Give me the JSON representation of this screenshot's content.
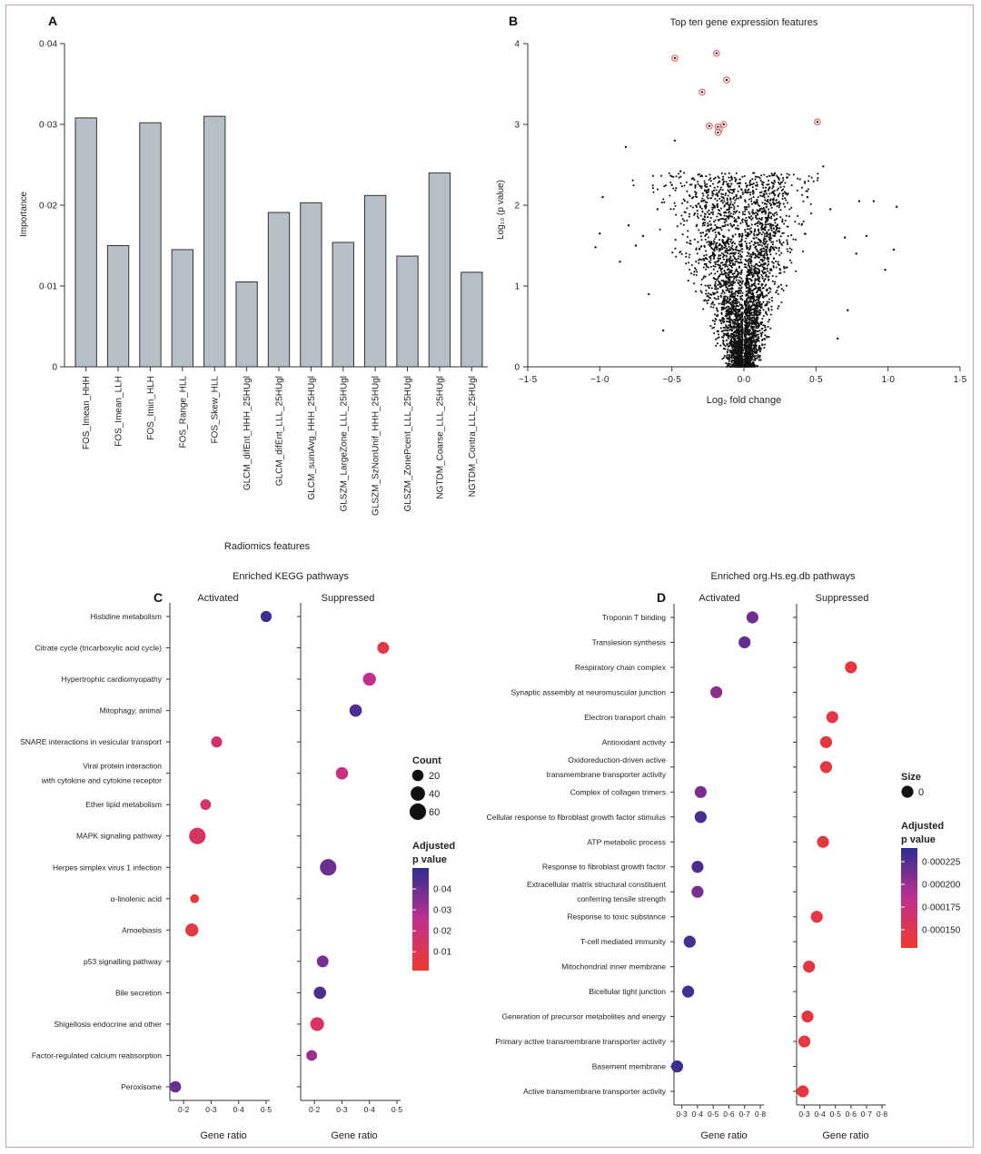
{
  "panels": {
    "A": {
      "letter": "A",
      "chart_data": {
        "type": "bar",
        "title": "",
        "xlabel": "Radiomics features",
        "ylabel": "Importance",
        "ylim": [
          0,
          0.04
        ],
        "yticks": [
          "0",
          "0·01",
          "0·02",
          "0·03",
          "0·04"
        ],
        "categories": [
          "FOS_Imean_HHH",
          "FOS_Imean_LLH",
          "FOS_Imin_HLH",
          "FOS_Range_HLL",
          "FOS_Skew_HLL",
          "GLCM_difEnt_HHH_25HUgl",
          "GLCM_difEnt_LLL_25HUgl",
          "GLCM_sumAvg_HHH_25HUgl",
          "GLSZM_LargeZone_LLL_25HUgl",
          "GLSZM_SzNonUnif_HHH_25HUgl",
          "GLSZM_ZonePcent_LLL_25HUgl",
          "NGTDM_Coarse_LLL_25HUgl",
          "NGTDM_Contra_LLL_25HUgl"
        ],
        "values": [
          0.0308,
          0.015,
          0.0302,
          0.0145,
          0.031,
          0.0105,
          0.0191,
          0.0203,
          0.0154,
          0.0212,
          0.0137,
          0.024,
          0.0117
        ],
        "bar_color": "#b6bec8"
      }
    },
    "B": {
      "letter": "B",
      "chart_data": {
        "type": "scatter",
        "title": "Top ten gene expression features",
        "xlabel": "Log₂ fold change",
        "ylabel": "Log₁₀ (p value)",
        "xlim": [
          -1.5,
          1.5
        ],
        "ylim": [
          0,
          4
        ],
        "xticks": [
          "−1·5",
          "−1·0",
          "−0·5",
          "0·0",
          "0·5",
          "1·0",
          "1·5"
        ],
        "yticks": [
          "0",
          "1",
          "2",
          "3",
          "4"
        ],
        "point_color": "#111111",
        "highlight_color": "#e06b6b",
        "highlighted": [
          {
            "x": -0.48,
            "y": 3.82
          },
          {
            "x": -0.19,
            "y": 3.88
          },
          {
            "x": -0.12,
            "y": 3.55
          },
          {
            "x": -0.29,
            "y": 3.4
          },
          {
            "x": -0.24,
            "y": 2.98
          },
          {
            "x": -0.18,
            "y": 2.97
          },
          {
            "x": -0.14,
            "y": 3.0
          },
          {
            "x": -0.17,
            "y": 2.93
          },
          {
            "x": -0.18,
            "y": 2.9
          },
          {
            "x": 0.51,
            "y": 3.03
          }
        ],
        "outliers": [
          {
            "x": -1.03,
            "y": 1.48
          },
          {
            "x": -1.0,
            "y": 1.65
          },
          {
            "x": -0.98,
            "y": 2.1
          },
          {
            "x": -0.86,
            "y": 1.3
          },
          {
            "x": -0.82,
            "y": 2.72
          },
          {
            "x": -0.8,
            "y": 1.75
          },
          {
            "x": -0.75,
            "y": 1.5
          },
          {
            "x": -0.7,
            "y": 1.62
          },
          {
            "x": -0.66,
            "y": 0.9
          },
          {
            "x": -0.6,
            "y": 1.95
          },
          {
            "x": -0.56,
            "y": 0.45
          },
          {
            "x": -0.5,
            "y": 2.25
          },
          {
            "x": -0.48,
            "y": 2.8
          },
          {
            "x": -0.44,
            "y": 2.42
          },
          {
            "x": 0.44,
            "y": 2.1
          },
          {
            "x": 0.55,
            "y": 2.48
          },
          {
            "x": 0.6,
            "y": 1.95
          },
          {
            "x": 0.7,
            "y": 1.6
          },
          {
            "x": 0.8,
            "y": 2.05
          },
          {
            "x": 0.85,
            "y": 1.62
          },
          {
            "x": 0.9,
            "y": 2.05
          },
          {
            "x": 0.98,
            "y": 1.2
          },
          {
            "x": 1.04,
            "y": 1.45
          },
          {
            "x": 1.06,
            "y": 1.98
          },
          {
            "x": 0.65,
            "y": 0.35
          },
          {
            "x": 0.72,
            "y": 0.7
          },
          {
            "x": 0.78,
            "y": 1.4
          }
        ],
        "cloud_points": 4000
      }
    },
    "C": {
      "letter": "C",
      "chart_data": {
        "type": "scatter",
        "title": "Enriched KEGG pathways",
        "xlabel": "Gene ratio",
        "facets": [
          "Activated",
          "Suppressed"
        ],
        "xlim": [
          0.15,
          0.5
        ],
        "xticks": [
          "0·2",
          "0·3",
          "0·4",
          "0·5"
        ],
        "categories": [
          "Histidine metabolism",
          "Citrate cycle (tricarboxylic acid cycle)",
          "Hypertrophic cardiomyopathy",
          "Mitophagy, animal",
          "SNARE interactions in vesicular transport",
          "Viral protein interaction\nwith cytokine and cytokine receptor",
          "Ether lipid metabolism",
          "MAPK signaling pathway",
          "Herpes simplex virus 1 infection",
          "α-linolenic acid",
          "Amoebiasis",
          "p53 signalling pathway",
          "Bile secretion",
          "Shigellosis endocrine and other",
          "Factor-regulated calcium reabsorption",
          "Peroxisome"
        ],
        "points": [
          {
            "facet": 0,
            "cat": 0,
            "x": 0.5,
            "count": 18,
            "padj": 0.048
          },
          {
            "facet": 1,
            "cat": 1,
            "x": 0.45,
            "count": 22,
            "padj": 0.008
          },
          {
            "facet": 1,
            "cat": 2,
            "x": 0.4,
            "count": 30,
            "padj": 0.025
          },
          {
            "facet": 1,
            "cat": 3,
            "x": 0.35,
            "count": 26,
            "padj": 0.045
          },
          {
            "facet": 0,
            "cat": 4,
            "x": 0.32,
            "count": 18,
            "padj": 0.018
          },
          {
            "facet": 1,
            "cat": 5,
            "x": 0.3,
            "count": 26,
            "padj": 0.022
          },
          {
            "facet": 0,
            "cat": 6,
            "x": 0.28,
            "count": 16,
            "padj": 0.015
          },
          {
            "facet": 0,
            "cat": 7,
            "x": 0.25,
            "count": 60,
            "padj": 0.014
          },
          {
            "facet": 1,
            "cat": 8,
            "x": 0.25,
            "count": 60,
            "padj": 0.04
          },
          {
            "facet": 0,
            "cat": 9,
            "x": 0.24,
            "count": 8,
            "padj": 0.004
          },
          {
            "facet": 0,
            "cat": 10,
            "x": 0.23,
            "count": 30,
            "padj": 0.006
          },
          {
            "facet": 1,
            "cat": 11,
            "x": 0.23,
            "count": 22,
            "padj": 0.038
          },
          {
            "facet": 1,
            "cat": 12,
            "x": 0.22,
            "count": 26,
            "padj": 0.045
          },
          {
            "facet": 1,
            "cat": 13,
            "x": 0.21,
            "count": 36,
            "padj": 0.014
          },
          {
            "facet": 1,
            "cat": 14,
            "x": 0.19,
            "count": 16,
            "padj": 0.032
          },
          {
            "facet": 0,
            "cat": 15,
            "x": 0.17,
            "count": 20,
            "padj": 0.04
          }
        ],
        "size_legend": {
          "title": "Count",
          "values": [
            20,
            40,
            60
          ]
        },
        "color_legend": {
          "title": "Adjusted\np value",
          "ticks": [
            "0·04",
            "0·03",
            "0·02",
            "0·01"
          ],
          "range": [
            0.001,
            0.05
          ],
          "low_color": "#ee3a2c",
          "mid_color": "#c0308e",
          "high_color": "#2e2e91"
        }
      }
    },
    "D": {
      "letter": "D",
      "chart_data": {
        "type": "scatter",
        "title": "Enriched org.Hs.eg.db pathways",
        "xlabel": "Gene ratio",
        "facets": [
          "Activated",
          "Suppressed"
        ],
        "xlim": [
          0.25,
          0.8
        ],
        "xticks": [
          "0·3",
          "0·4",
          "0·5",
          "0·6",
          "0·7",
          "0·8"
        ],
        "categories": [
          "Troponin T binding",
          "Translesion synthesis",
          "Respiratory chain complex",
          "Synaptic assembly at neuromuscular junction",
          "Electron transport chain",
          "Antioxidant activity",
          "Oxidoreduction-driven active\ntransmembrane transporter activity",
          "Complex of collagen trimers",
          "Cellular response to fibroblast growth factor stimulus",
          "ATP metabolic process",
          "Response to fibroblast growth factor",
          "Extracellular matrix structural constituent\nconferring tensile strength",
          "Response to toxic substance",
          "T-cell mediated immunity",
          "Mitochondrial inner membrane",
          "Bicellular tight junction",
          "Generation of precursor metabolites and energy",
          "Primary active transmembrane transporter activity",
          "Basement membrane",
          "Active transmembrane transporter activity"
        ],
        "points": [
          {
            "facet": 0,
            "cat": 0,
            "x": 0.75,
            "padj": 0.000215
          },
          {
            "facet": 0,
            "cat": 1,
            "x": 0.7,
            "padj": 0.00022
          },
          {
            "facet": 1,
            "cat": 2,
            "x": 0.6,
            "padj": 0.00014
          },
          {
            "facet": 0,
            "cat": 3,
            "x": 0.52,
            "padj": 0.000205
          },
          {
            "facet": 1,
            "cat": 4,
            "x": 0.48,
            "padj": 0.000145
          },
          {
            "facet": 1,
            "cat": 5,
            "x": 0.44,
            "padj": 0.000142
          },
          {
            "facet": 1,
            "cat": 6,
            "x": 0.44,
            "padj": 0.000142
          },
          {
            "facet": 0,
            "cat": 7,
            "x": 0.42,
            "padj": 0.000212
          },
          {
            "facet": 0,
            "cat": 8,
            "x": 0.42,
            "padj": 0.000232
          },
          {
            "facet": 1,
            "cat": 9,
            "x": 0.42,
            "padj": 0.000142
          },
          {
            "facet": 0,
            "cat": 10,
            "x": 0.4,
            "padj": 0.00023
          },
          {
            "facet": 0,
            "cat": 11,
            "x": 0.4,
            "padj": 0.000212
          },
          {
            "facet": 1,
            "cat": 12,
            "x": 0.38,
            "padj": 0.000143
          },
          {
            "facet": 0,
            "cat": 13,
            "x": 0.35,
            "padj": 0.000232
          },
          {
            "facet": 1,
            "cat": 14,
            "x": 0.33,
            "padj": 0.000143
          },
          {
            "facet": 0,
            "cat": 15,
            "x": 0.34,
            "padj": 0.000232
          },
          {
            "facet": 1,
            "cat": 16,
            "x": 0.32,
            "padj": 0.000142
          },
          {
            "facet": 1,
            "cat": 17,
            "x": 0.3,
            "padj": 0.00014
          },
          {
            "facet": 0,
            "cat": 18,
            "x": 0.27,
            "padj": 0.000235
          },
          {
            "facet": 1,
            "cat": 19,
            "x": 0.29,
            "padj": 0.00014
          }
        ],
        "size_legend": {
          "title": "Size",
          "values": [
            0
          ]
        },
        "color_legend": {
          "title": "Adjusted\np value",
          "ticks": [
            "0·000225",
            "0·000200",
            "0·000175",
            "0·000150"
          ],
          "range": [
            0.00013,
            0.00024
          ],
          "low_color": "#ee3a2c",
          "mid_color": "#c0308e",
          "high_color": "#2e2e91"
        }
      }
    }
  }
}
